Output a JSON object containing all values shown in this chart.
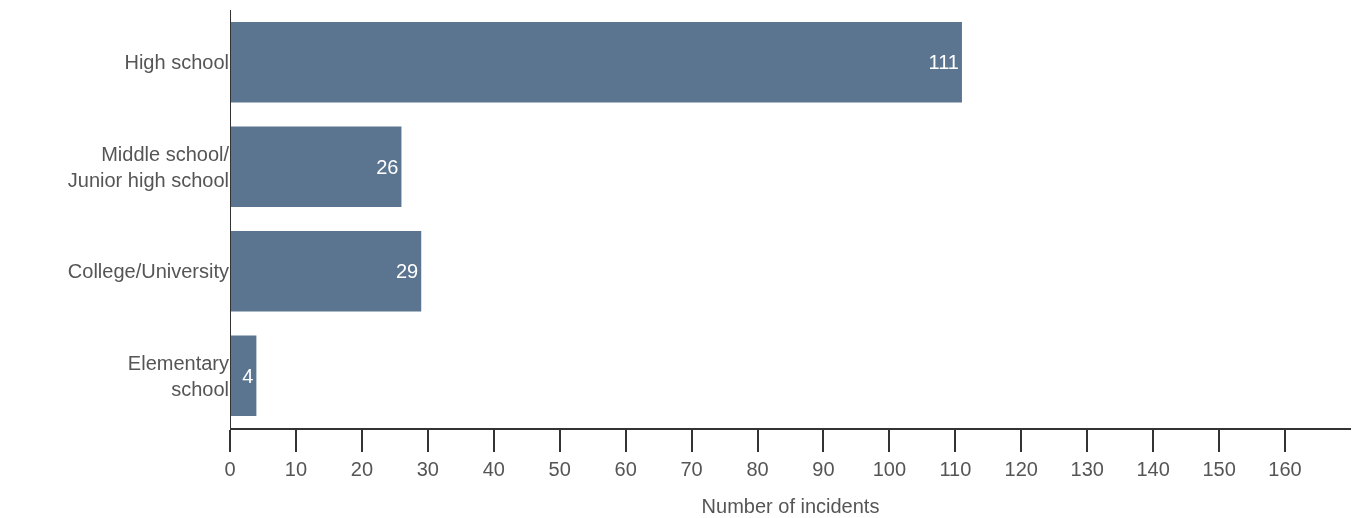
{
  "chart_data": {
    "type": "bar",
    "orientation": "horizontal",
    "xlabel": "Number of incidents",
    "categories": [
      "High school",
      "Middle school/\nJunior high school",
      "College/University",
      "Elementary\nschool"
    ],
    "values": [
      111,
      26,
      29,
      4
    ],
    "color": "#5b7590",
    "xlim": [
      0,
      170
    ],
    "xticks": [
      0,
      10,
      20,
      30,
      40,
      50,
      60,
      70,
      80,
      90,
      100,
      110,
      120,
      130,
      140,
      150,
      160
    ],
    "grid": false,
    "data_labels": true
  }
}
